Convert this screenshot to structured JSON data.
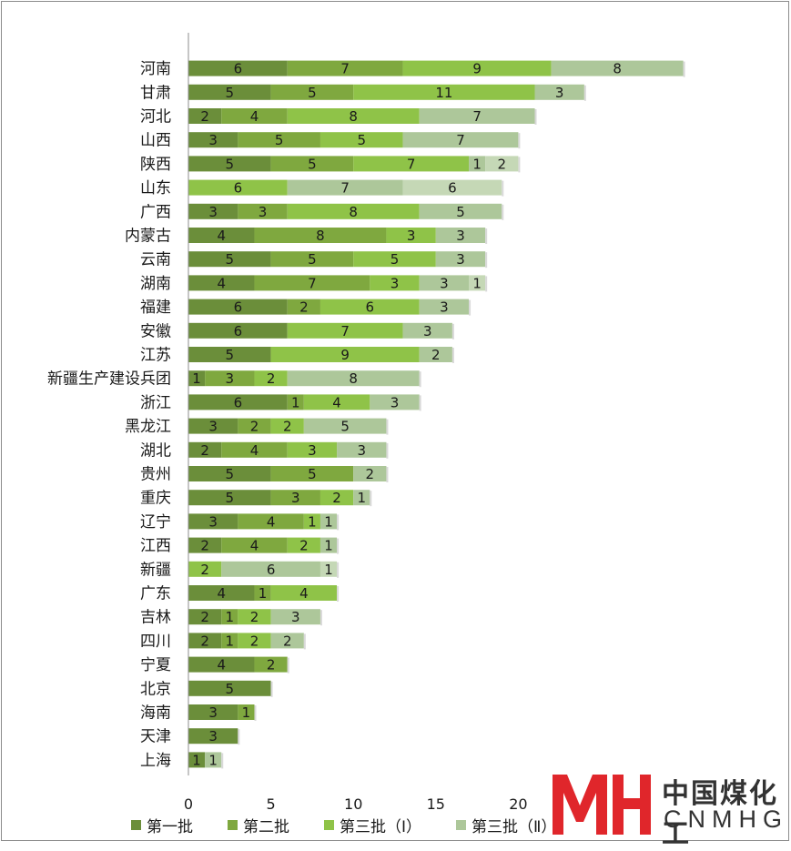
{
  "chart_data": {
    "type": "bar",
    "orientation": "horizontal",
    "stacked": true,
    "categories": [
      "河南",
      "甘肃",
      "河北",
      "山西",
      "陕西",
      "山东",
      "广西",
      "内蒙古",
      "云南",
      "湖南",
      "福建",
      "安徽",
      "江苏",
      "新疆生产建设兵团",
      "浙江",
      "黑龙江",
      "湖北",
      "贵州",
      "重庆",
      "辽宁",
      "江西",
      "新疆",
      "广东",
      "吉林",
      "四川",
      "宁夏",
      "北京",
      "海南",
      "天津",
      "上海"
    ],
    "series": [
      {
        "name": "第一批",
        "color": "#6b8e3a",
        "values": [
          6,
          5,
          2,
          3,
          5,
          0,
          3,
          4,
          5,
          4,
          6,
          6,
          5,
          1,
          6,
          3,
          2,
          5,
          5,
          3,
          2,
          0,
          4,
          2,
          2,
          4,
          5,
          3,
          3,
          1
        ]
      },
      {
        "name": "第二批",
        "color": "#7fa83f",
        "values": [
          7,
          5,
          4,
          5,
          5,
          0,
          3,
          8,
          5,
          7,
          2,
          0,
          0,
          3,
          1,
          2,
          4,
          5,
          3,
          4,
          4,
          0,
          1,
          1,
          1,
          2,
          0,
          1,
          0,
          0
        ]
      },
      {
        "name": "第三批（Ⅰ）",
        "color": "#8fc348",
        "values": [
          9,
          11,
          8,
          5,
          7,
          6,
          8,
          3,
          5,
          3,
          6,
          7,
          9,
          2,
          4,
          2,
          3,
          0,
          2,
          1,
          2,
          2,
          4,
          2,
          2,
          0,
          0,
          0,
          0,
          0
        ]
      },
      {
        "name": "第三批（Ⅱ）",
        "color": "#adc79a",
        "values": [
          8,
          3,
          7,
          7,
          1,
          7,
          5,
          3,
          3,
          3,
          3,
          3,
          2,
          8,
          3,
          5,
          3,
          2,
          1,
          1,
          1,
          6,
          0,
          3,
          2,
          0,
          0,
          0,
          0,
          1
        ]
      },
      {
        "name": "",
        "color": "#c5d8b6",
        "values": [
          0,
          0,
          0,
          0,
          2,
          6,
          0,
          0,
          0,
          1,
          0,
          0,
          0,
          0,
          0,
          0,
          0,
          0,
          0,
          0,
          0,
          1,
          0,
          0,
          0,
          0,
          0,
          0,
          0,
          0
        ]
      }
    ],
    "xlim": [
      0,
      30
    ],
    "xticks": [
      0,
      5,
      10,
      15,
      20
    ],
    "grid": false,
    "legend_position": "bottom"
  },
  "legend": [
    {
      "label": "第一批",
      "color": "#6b8e3a"
    },
    {
      "label": "第二批",
      "color": "#7fa83f"
    },
    {
      "label": "第三批（Ⅰ）",
      "color": "#8fc348"
    },
    {
      "label": "第三批（Ⅱ）",
      "color": "#adc79a"
    }
  ],
  "watermark": {
    "logo_letters": "MH",
    "logo_color": "#e0262b",
    "chinese": "中国煤化工",
    "english": "CNMHG"
  }
}
